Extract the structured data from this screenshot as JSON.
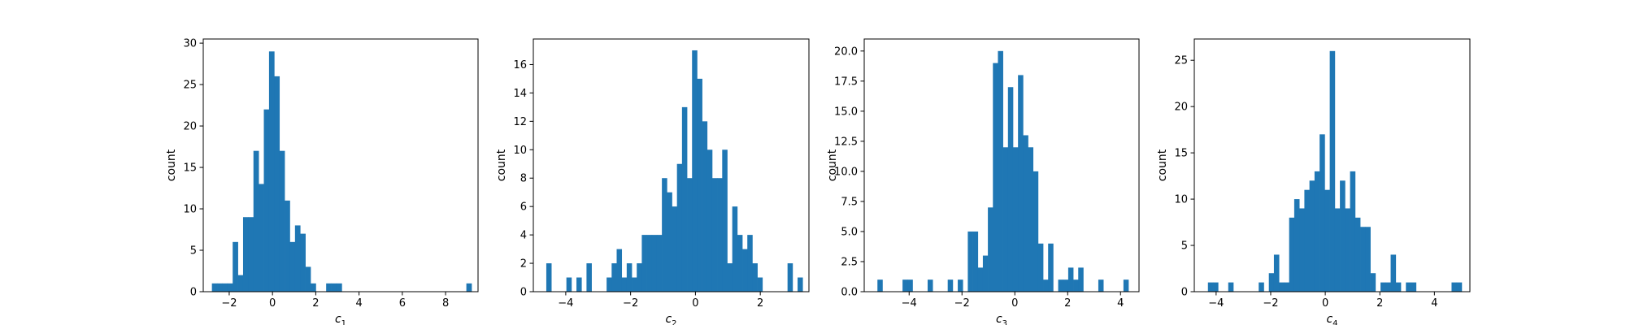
{
  "chart_data": [
    {
      "type": "bar",
      "xlabel_main": "c",
      "xlabel_sub": "1",
      "ylabel": "count",
      "xlim": [
        -3.2,
        9.5
      ],
      "ylim": [
        0,
        30.5
      ],
      "xticks": [
        -2,
        0,
        2,
        4,
        6,
        8
      ],
      "xtick_labels": [
        "−2",
        "0",
        "2",
        "4",
        "6",
        "8"
      ],
      "yticks": [
        0,
        5,
        10,
        15,
        20,
        25,
        30
      ],
      "ytick_labels": [
        "0",
        "5",
        "10",
        "15",
        "20",
        "25",
        "30"
      ],
      "bin_start": -2.8,
      "bin_width": 0.24,
      "values": [
        1,
        1,
        1,
        1,
        6,
        2,
        9,
        9,
        17,
        13,
        22,
        29,
        26,
        17,
        11,
        6,
        8,
        7,
        3,
        1,
        0,
        0,
        1,
        1,
        1,
        0,
        0,
        0,
        0,
        0,
        0,
        0,
        0,
        0,
        0,
        0,
        0,
        0,
        0,
        0,
        0,
        0,
        0,
        0,
        0,
        0,
        0,
        0,
        0,
        1
      ]
    },
    {
      "type": "bar",
      "xlabel_main": "c",
      "xlabel_sub": "2",
      "ylabel": "count",
      "xlim": [
        -5.0,
        3.5
      ],
      "ylim": [
        0,
        17.8
      ],
      "xticks": [
        -4,
        -2,
        0,
        2
      ],
      "xtick_labels": [
        "−4",
        "−2",
        "0",
        "2"
      ],
      "yticks": [
        0,
        2,
        4,
        6,
        8,
        10,
        12,
        14,
        16
      ],
      "ytick_labels": [
        "0",
        "2",
        "4",
        "6",
        "8",
        "10",
        "12",
        "14",
        "16"
      ],
      "bin_start": -4.6,
      "bin_width": 0.155,
      "values": [
        2,
        0,
        0,
        0,
        1,
        0,
        1,
        0,
        2,
        0,
        0,
        0,
        1,
        2,
        3,
        1,
        2,
        1,
        2,
        4,
        4,
        4,
        4,
        8,
        7,
        6,
        9,
        13,
        8,
        17,
        15,
        12,
        10,
        8,
        8,
        10,
        2,
        6,
        4,
        3,
        4,
        2,
        1,
        0,
        0,
        0,
        0,
        0,
        2,
        0,
        1
      ]
    },
    {
      "type": "bar",
      "xlabel_main": "c",
      "xlabel_sub": "3",
      "ylabel": "count",
      "xlim": [
        -5.7,
        4.7
      ],
      "ylim": [
        0,
        21.0
      ],
      "xticks": [
        -4,
        -2,
        0,
        2,
        4
      ],
      "xtick_labels": [
        "−4",
        "−2",
        "0",
        "2",
        "4"
      ],
      "yticks": [
        0,
        2.5,
        5,
        7.5,
        10,
        12.5,
        15,
        17.5,
        20
      ],
      "ytick_labels": [
        "0.0",
        "2.5",
        "5.0",
        "7.5",
        "10.0",
        "12.5",
        "15.0",
        "17.5",
        "20.0"
      ],
      "bin_start": -5.2,
      "bin_width": 0.19,
      "values": [
        1,
        0,
        0,
        0,
        0,
        1,
        1,
        0,
        0,
        0,
        1,
        0,
        0,
        0,
        1,
        0,
        1,
        0,
        5,
        5,
        2,
        3,
        7,
        19,
        20,
        12,
        17,
        12,
        18,
        13,
        12,
        10,
        4,
        1,
        4,
        0,
        1,
        1,
        2,
        1,
        2,
        0,
        0,
        0,
        1,
        0,
        0,
        0,
        0,
        1
      ]
    },
    {
      "type": "bar",
      "xlabel_main": "c",
      "xlabel_sub": "4",
      "ylabel": "count",
      "xlim": [
        -4.8,
        5.3
      ],
      "ylim": [
        0,
        27.3
      ],
      "xticks": [
        -4,
        -2,
        0,
        2,
        4
      ],
      "xtick_labels": [
        "−4",
        "−2",
        "0",
        "2",
        "4"
      ],
      "yticks": [
        0,
        5,
        10,
        15,
        20,
        25
      ],
      "ytick_labels": [
        "0",
        "5",
        "10",
        "15",
        "20",
        "25"
      ],
      "bin_start": -4.3,
      "bin_width": 0.186,
      "values": [
        1,
        1,
        0,
        0,
        1,
        0,
        0,
        0,
        0,
        0,
        1,
        0,
        2,
        4,
        1,
        1,
        8,
        10,
        9,
        11,
        12,
        13,
        17,
        11,
        26,
        9,
        12,
        9,
        13,
        8,
        7,
        7,
        2,
        0,
        1,
        1,
        4,
        1,
        0,
        1,
        1,
        0,
        0,
        0,
        0,
        0,
        0,
        0,
        1,
        1
      ]
    }
  ]
}
